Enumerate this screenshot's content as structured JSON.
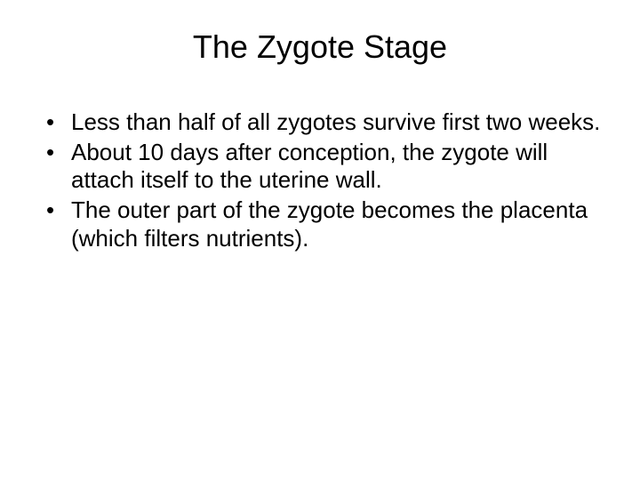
{
  "slide": {
    "title": "The Zygote Stage",
    "title_fontsize": 36,
    "body_fontsize": 26,
    "background_color": "#ffffff",
    "text_color": "#000000",
    "font_family": "Arial",
    "bullets": [
      "Less than half of all zygotes survive first two weeks.",
      "About 10 days after conception, the zygote will attach itself to the uterine wall.",
      "The outer part of the zygote becomes the placenta (which filters nutrients)."
    ]
  }
}
